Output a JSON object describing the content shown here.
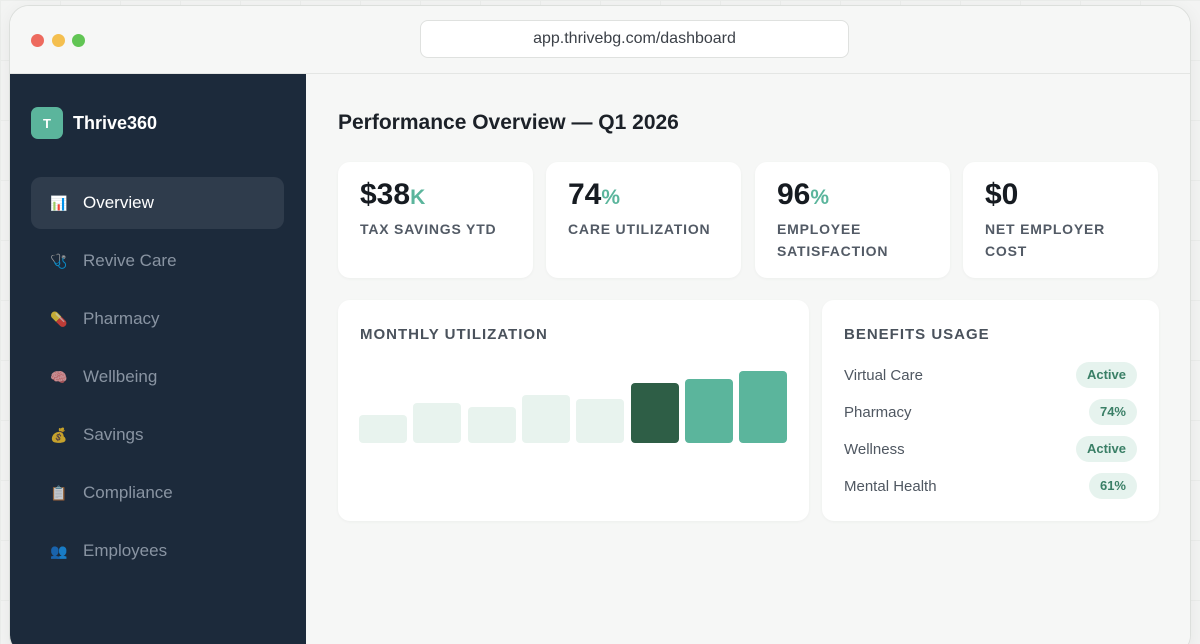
{
  "browser": {
    "url": "app.thrivebg.com/dashboard"
  },
  "brand": {
    "logo_letter": "T",
    "name": "Thrive360"
  },
  "sidebar": {
    "items": [
      {
        "label": "Overview",
        "icon": "📊",
        "icon_name": "bar-chart-icon",
        "active": true
      },
      {
        "label": "Revive Care",
        "icon": "🩺",
        "icon_name": "stethoscope-icon",
        "active": false
      },
      {
        "label": "Pharmacy",
        "icon": "💊",
        "icon_name": "pill-icon",
        "active": false
      },
      {
        "label": "Wellbeing",
        "icon": "🧠",
        "icon_name": "brain-icon",
        "active": false
      },
      {
        "label": "Savings",
        "icon": "💰",
        "icon_name": "money-bag-icon",
        "active": false
      },
      {
        "label": "Compliance",
        "icon": "📋",
        "icon_name": "clipboard-icon",
        "active": false
      },
      {
        "label": "Employees",
        "icon": "👥",
        "icon_name": "people-icon",
        "active": false
      }
    ]
  },
  "page": {
    "title": "Performance Overview — Q1 2026"
  },
  "stats": [
    {
      "value": "$38",
      "suffix": "K",
      "label": "TAX SAVINGS YTD"
    },
    {
      "value": "74",
      "suffix": "%",
      "label": "CARE UTILIZATION"
    },
    {
      "value": "96",
      "suffix": "%",
      "label": "EMPLOYEE SATISFACTION"
    },
    {
      "value": "$0",
      "suffix": "",
      "label": "NET EMPLOYER COST"
    }
  ],
  "utilization": {
    "title": "MONTHLY UTILIZATION",
    "bars": [
      {
        "value": 28,
        "color": "#e8f3ee"
      },
      {
        "value": 40,
        "color": "#e8f3ee"
      },
      {
        "value": 36,
        "color": "#e8f3ee"
      },
      {
        "value": 48,
        "color": "#e8f3ee"
      },
      {
        "value": 44,
        "color": "#e8f3ee"
      },
      {
        "value": 60,
        "color": "#2e5e46"
      },
      {
        "value": 64,
        "color": "#5bb59c"
      },
      {
        "value": 72,
        "color": "#5bb59c"
      }
    ]
  },
  "benefits": {
    "title": "BENEFITS USAGE",
    "rows": [
      {
        "name": "Virtual Care",
        "status": "Active"
      },
      {
        "name": "Pharmacy",
        "status": "74%"
      },
      {
        "name": "Wellness",
        "status": "Active"
      },
      {
        "name": "Mental Health",
        "status": "61%"
      }
    ]
  },
  "colors": {
    "sidebar_bg": "#1c2a3b",
    "accent": "#5bb59c",
    "accent_dark": "#2e5e46"
  }
}
